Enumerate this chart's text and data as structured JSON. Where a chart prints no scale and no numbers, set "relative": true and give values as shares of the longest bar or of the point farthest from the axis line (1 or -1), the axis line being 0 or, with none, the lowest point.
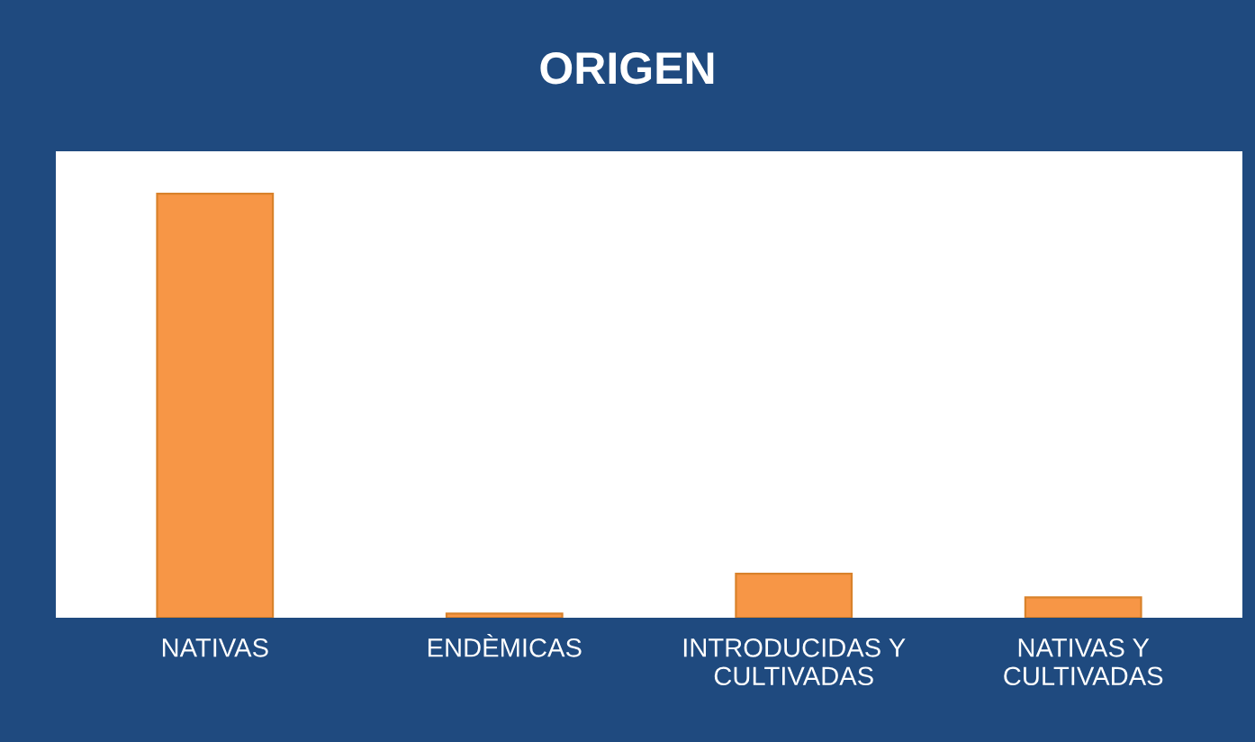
{
  "chart_data": {
    "type": "bar",
    "title": "ORIGEN",
    "relative": true,
    "categories": [
      "NATIVAS",
      "ENDÈMICAS",
      "INTRODUCIDAS Y\nCULTIVADAS",
      "NATIVAS Y\nCULTIVADAS"
    ],
    "values": [
      1,
      0.01,
      0.104,
      0.048
    ],
    "color": "#f79646",
    "grid": false,
    "legend": false
  }
}
